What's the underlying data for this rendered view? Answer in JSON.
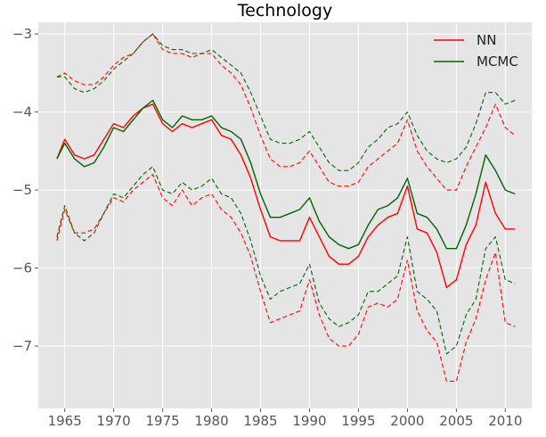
{
  "chart_data": {
    "type": "line",
    "title": "Technology",
    "xlabel": "",
    "ylabel": "",
    "xlim": [
      1962.3,
      2012.7
    ],
    "ylim": [
      -7.8,
      -2.85
    ],
    "x_ticks": [
      1965,
      1970,
      1975,
      1980,
      1985,
      1990,
      1995,
      2000,
      2005,
      2010
    ],
    "y_ticks": [
      -3,
      -4,
      -5,
      -6,
      -7
    ],
    "y_tick_labels": [
      "−3",
      "−4",
      "−5",
      "−6",
      "−7"
    ],
    "grid": true,
    "background": "#e5e5e5",
    "grid_color": "#ffffff",
    "legend": {
      "placement": "top-right"
    },
    "series": [
      {
        "name": "NN",
        "color": "#ff0000",
        "style": "solid",
        "x": [
          1964.2,
          1965,
          1966,
          1967,
          1968,
          1969,
          1970,
          1971,
          1972,
          1973,
          1974,
          1975,
          1976,
          1977,
          1978,
          1979,
          1980,
          1981,
          1982,
          1983,
          1984,
          1985,
          1986,
          1987,
          1988,
          1989,
          1990,
          1991,
          1992,
          1993,
          1994,
          1995,
          1996,
          1997,
          1998,
          1999,
          2000,
          2001,
          2002,
          2003,
          2004,
          2005,
          2006,
          2007,
          2008,
          2009,
          2010,
          2011
        ],
        "values": [
          -4.6,
          -4.35,
          -4.55,
          -4.6,
          -4.55,
          -4.35,
          -4.15,
          -4.2,
          -4.05,
          -3.95,
          -3.9,
          -4.15,
          -4.25,
          -4.15,
          -4.2,
          -4.15,
          -4.1,
          -4.3,
          -4.35,
          -4.55,
          -4.85,
          -5.25,
          -5.6,
          -5.65,
          -5.65,
          -5.65,
          -5.35,
          -5.6,
          -5.85,
          -5.95,
          -5.95,
          -5.85,
          -5.6,
          -5.45,
          -5.35,
          -5.3,
          -4.95,
          -5.5,
          -5.55,
          -5.8,
          -6.25,
          -6.15,
          -5.7,
          -5.45,
          -4.9,
          -5.3,
          -5.5,
          -5.5
        ]
      },
      {
        "name": "",
        "color": "#ff0000",
        "style": "dashed",
        "x": [
          1964.2,
          1965,
          1966,
          1967,
          1968,
          1969,
          1970,
          1971,
          1972,
          1973,
          1974,
          1975,
          1976,
          1977,
          1978,
          1979,
          1980,
          1981,
          1982,
          1983,
          1984,
          1985,
          1986,
          1987,
          1988,
          1989,
          1990,
          1991,
          1992,
          1993,
          1994,
          1995,
          1996,
          1997,
          1998,
          1999,
          2000,
          2001,
          2002,
          2003,
          2004,
          2005,
          2006,
          2007,
          2008,
          2009,
          2010,
          2011
        ],
        "values": [
          -3.55,
          -3.5,
          -3.6,
          -3.65,
          -3.65,
          -3.55,
          -3.4,
          -3.3,
          -3.25,
          -3.1,
          -3.0,
          -3.2,
          -3.25,
          -3.25,
          -3.3,
          -3.25,
          -3.25,
          -3.4,
          -3.5,
          -3.65,
          -3.95,
          -4.3,
          -4.6,
          -4.7,
          -4.7,
          -4.65,
          -4.5,
          -4.7,
          -4.9,
          -4.95,
          -4.95,
          -4.9,
          -4.7,
          -4.6,
          -4.5,
          -4.4,
          -4.1,
          -4.5,
          -4.7,
          -4.85,
          -5.0,
          -5.0,
          -4.7,
          -4.45,
          -4.2,
          -3.9,
          -4.2,
          -4.3
        ]
      },
      {
        "name": "",
        "color": "#ff0000",
        "style": "dashed",
        "x": [
          1964.2,
          1965,
          1966,
          1967,
          1968,
          1969,
          1970,
          1971,
          1972,
          1973,
          1974,
          1975,
          1976,
          1977,
          1978,
          1979,
          1980,
          1981,
          1982,
          1983,
          1984,
          1985,
          1986,
          1987,
          1988,
          1989,
          1990,
          1991,
          1992,
          1993,
          1994,
          1995,
          1996,
          1997,
          1998,
          1999,
          2000,
          2001,
          2002,
          2003,
          2004,
          2005,
          2006,
          2007,
          2008,
          2009,
          2010,
          2011
        ],
        "values": [
          -5.65,
          -5.25,
          -5.55,
          -5.55,
          -5.5,
          -5.3,
          -5.1,
          -5.15,
          -5.0,
          -4.9,
          -4.8,
          -5.1,
          -5.2,
          -5.0,
          -5.2,
          -5.1,
          -5.05,
          -5.25,
          -5.35,
          -5.55,
          -5.85,
          -6.3,
          -6.7,
          -6.65,
          -6.6,
          -6.55,
          -6.15,
          -6.6,
          -6.9,
          -7.0,
          -7.0,
          -6.85,
          -6.5,
          -6.45,
          -6.5,
          -6.4,
          -5.9,
          -6.55,
          -6.8,
          -6.95,
          -7.45,
          -7.45,
          -6.95,
          -6.65,
          -6.15,
          -5.8,
          -6.7,
          -6.75
        ]
      },
      {
        "name": "MCMC",
        "color": "#006400",
        "style": "solid",
        "x": [
          1964.2,
          1965,
          1966,
          1967,
          1968,
          1969,
          1970,
          1971,
          1972,
          1973,
          1974,
          1975,
          1976,
          1977,
          1978,
          1979,
          1980,
          1981,
          1982,
          1983,
          1984,
          1985,
          1986,
          1987,
          1988,
          1989,
          1990,
          1991,
          1992,
          1993,
          1994,
          1995,
          1996,
          1997,
          1998,
          1999,
          2000,
          2001,
          2002,
          2003,
          2004,
          2005,
          2006,
          2007,
          2008,
          2009,
          2010,
          2011
        ],
        "values": [
          -4.6,
          -4.4,
          -4.6,
          -4.7,
          -4.65,
          -4.45,
          -4.2,
          -4.25,
          -4.1,
          -3.95,
          -3.85,
          -4.1,
          -4.2,
          -4.05,
          -4.1,
          -4.1,
          -4.05,
          -4.2,
          -4.25,
          -4.35,
          -4.65,
          -5.05,
          -5.35,
          -5.35,
          -5.3,
          -5.25,
          -5.1,
          -5.4,
          -5.6,
          -5.7,
          -5.75,
          -5.7,
          -5.45,
          -5.25,
          -5.2,
          -5.1,
          -4.85,
          -5.3,
          -5.35,
          -5.5,
          -5.75,
          -5.75,
          -5.45,
          -5.05,
          -4.55,
          -4.75,
          -5.0,
          -5.05
        ]
      },
      {
        "name": "",
        "color": "#006400",
        "style": "dashed",
        "x": [
          1964.2,
          1965,
          1966,
          1967,
          1968,
          1969,
          1970,
          1971,
          1972,
          1973,
          1974,
          1975,
          1976,
          1977,
          1978,
          1979,
          1980,
          1981,
          1982,
          1983,
          1984,
          1985,
          1986,
          1987,
          1988,
          1989,
          1990,
          1991,
          1992,
          1993,
          1994,
          1995,
          1996,
          1997,
          1998,
          1999,
          2000,
          2001,
          2002,
          2003,
          2004,
          2005,
          2006,
          2007,
          2008,
          2009,
          2010,
          2011
        ],
        "values": [
          -3.55,
          -3.55,
          -3.7,
          -3.75,
          -3.7,
          -3.6,
          -3.45,
          -3.35,
          -3.25,
          -3.1,
          -3.0,
          -3.15,
          -3.2,
          -3.2,
          -3.25,
          -3.25,
          -3.2,
          -3.3,
          -3.4,
          -3.5,
          -3.75,
          -4.05,
          -4.35,
          -4.4,
          -4.4,
          -4.35,
          -4.25,
          -4.45,
          -4.65,
          -4.75,
          -4.75,
          -4.65,
          -4.45,
          -4.35,
          -4.2,
          -4.15,
          -4.0,
          -4.3,
          -4.5,
          -4.6,
          -4.65,
          -4.6,
          -4.45,
          -4.15,
          -3.75,
          -3.75,
          -3.9,
          -3.85
        ]
      },
      {
        "name": "",
        "color": "#006400",
        "style": "dashed",
        "x": [
          1964.2,
          1965,
          1966,
          1967,
          1968,
          1969,
          1970,
          1971,
          1972,
          1973,
          1974,
          1975,
          1976,
          1977,
          1978,
          1979,
          1980,
          1981,
          1982,
          1983,
          1984,
          1985,
          1986,
          1987,
          1988,
          1989,
          1990,
          1991,
          1992,
          1993,
          1994,
          1995,
          1996,
          1997,
          1998,
          1999,
          2000,
          2001,
          2002,
          2003,
          2004,
          2005,
          2006,
          2007,
          2008,
          2009,
          2010,
          2011
        ],
        "values": [
          -5.6,
          -5.2,
          -5.55,
          -5.65,
          -5.55,
          -5.3,
          -5.05,
          -5.1,
          -4.95,
          -4.8,
          -4.7,
          -5.0,
          -5.05,
          -4.9,
          -5.0,
          -4.95,
          -4.85,
          -5.05,
          -5.1,
          -5.3,
          -5.65,
          -6.1,
          -6.4,
          -6.3,
          -6.25,
          -6.2,
          -5.95,
          -6.45,
          -6.65,
          -6.75,
          -6.7,
          -6.6,
          -6.3,
          -6.3,
          -6.2,
          -6.1,
          -5.6,
          -6.3,
          -6.4,
          -6.55,
          -7.1,
          -7.0,
          -6.6,
          -6.4,
          -5.75,
          -5.6,
          -6.15,
          -6.2
        ]
      }
    ]
  }
}
